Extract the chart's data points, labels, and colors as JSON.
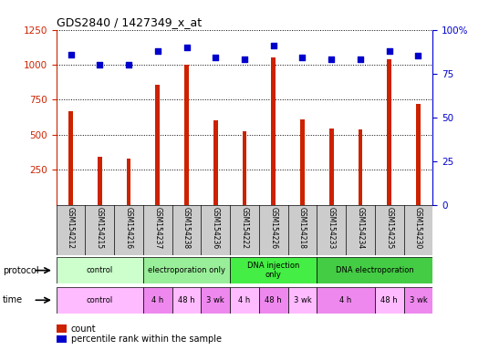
{
  "title": "GDS2840 / 1427349_x_at",
  "samples": [
    "GSM154212",
    "GSM154215",
    "GSM154216",
    "GSM154237",
    "GSM154238",
    "GSM154236",
    "GSM154222",
    "GSM154226",
    "GSM154218",
    "GSM154233",
    "GSM154234",
    "GSM154235",
    "GSM154230"
  ],
  "counts": [
    670,
    340,
    330,
    860,
    1000,
    600,
    525,
    1050,
    610,
    545,
    540,
    1040,
    720
  ],
  "percentile_ranks": [
    86,
    80,
    80,
    88,
    90,
    84,
    83,
    91,
    84,
    83,
    83,
    88,
    85
  ],
  "bar_color": "#cc2200",
  "dot_color": "#0000cc",
  "ylim_left": [
    0,
    1250
  ],
  "ylim_right": [
    0,
    100
  ],
  "yticks_left": [
    250,
    500,
    750,
    1000,
    1250
  ],
  "yticks_right": [
    0,
    25,
    50,
    75,
    100
  ],
  "protocol_groups": [
    {
      "label": "control",
      "start": 0,
      "end": 3,
      "color": "#ccffcc"
    },
    {
      "label": "electroporation only",
      "start": 3,
      "end": 6,
      "color": "#99ee99"
    },
    {
      "label": "DNA injection\nonly",
      "start": 6,
      "end": 9,
      "color": "#44ee44"
    },
    {
      "label": "DNA electroporation",
      "start": 9,
      "end": 13,
      "color": "#44cc44"
    }
  ],
  "time_groups": [
    {
      "label": "control",
      "start": 0,
      "end": 3,
      "color": "#ffbbff"
    },
    {
      "label": "4 h",
      "start": 3,
      "end": 4,
      "color": "#ee88ee"
    },
    {
      "label": "48 h",
      "start": 4,
      "end": 5,
      "color": "#ffbbff"
    },
    {
      "label": "3 wk",
      "start": 5,
      "end": 6,
      "color": "#ee88ee"
    },
    {
      "label": "4 h",
      "start": 6,
      "end": 7,
      "color": "#ffbbff"
    },
    {
      "label": "48 h",
      "start": 7,
      "end": 8,
      "color": "#ee88ee"
    },
    {
      "label": "3 wk",
      "start": 8,
      "end": 9,
      "color": "#ffbbff"
    },
    {
      "label": "4 h",
      "start": 9,
      "end": 11,
      "color": "#ee88ee"
    },
    {
      "label": "48 h",
      "start": 11,
      "end": 12,
      "color": "#ffbbff"
    },
    {
      "label": "3 wk",
      "start": 12,
      "end": 13,
      "color": "#ee88ee"
    }
  ],
  "bg_color": "#ffffff",
  "grid_color": "#888888",
  "left_axis_color": "#cc2200",
  "right_axis_color": "#0000cc",
  "sample_bg_color": "#cccccc"
}
